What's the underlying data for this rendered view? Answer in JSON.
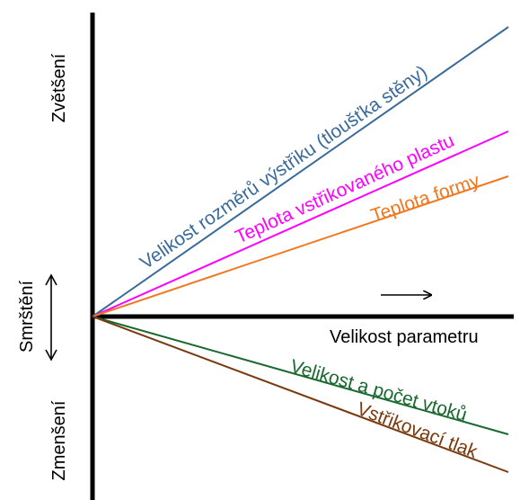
{
  "axis": {
    "y_top_label": "Zvětšení",
    "y_middle_label": "Smrštění",
    "y_bottom_label": "Zmenšení",
    "x_label": "Velikost parametru"
  },
  "lines": [
    {
      "label": "Velikost rozměrů výstřiku (tloušťka stěny)",
      "color": "#3a6a9a",
      "direction": "increase"
    },
    {
      "label": "Teplota vstřikovaného plastu",
      "color": "#ff00ff",
      "direction": "increase"
    },
    {
      "label": "Teplota formy",
      "color": "#f07820",
      "direction": "increase"
    },
    {
      "label": "Velikost a počet vtoků",
      "color": "#1a6a30",
      "direction": "decrease"
    },
    {
      "label": "Vstřikovací tlak",
      "color": "#7a3a10",
      "direction": "decrease"
    }
  ],
  "colors": {
    "axis": "#000000"
  }
}
